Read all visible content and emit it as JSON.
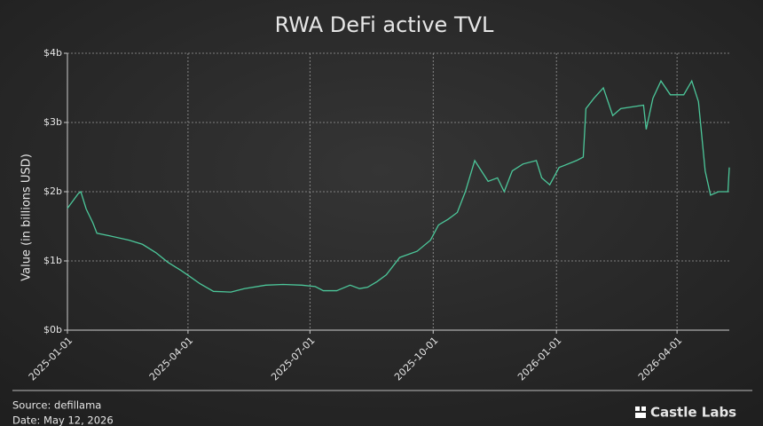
{
  "chart_data": {
    "type": "line",
    "title": "RWA DeFi active TVL",
    "y_label": "Value (in billions USD)",
    "source": "Source: defillama",
    "date_note": "Date: May 12, 2026",
    "brand": "Castle Labs",
    "grid": true,
    "xlim": [
      "2025-01-01",
      "2026-05-10"
    ],
    "xticks": [
      "2025-01-01",
      "2025-04-01",
      "2025-07-01",
      "2025-10-01",
      "2026-01-01",
      "2026-04-01"
    ],
    "ylim": [
      0,
      4
    ],
    "yticks": [
      {
        "value": 0,
        "label": "$0b"
      },
      {
        "value": 1,
        "label": "$1b"
      },
      {
        "value": 2,
        "label": "$2b"
      },
      {
        "value": 3,
        "label": "$3b"
      },
      {
        "value": 4,
        "label": "$4b"
      }
    ],
    "x": [
      "2025-01-01",
      "2025-01-09",
      "2025-01-11",
      "2025-01-15",
      "2025-01-20",
      "2025-01-23",
      "2025-02-02",
      "2025-02-16",
      "2025-02-26",
      "2025-03-08",
      "2025-03-17",
      "2025-03-27",
      "2025-04-02",
      "2025-04-10",
      "2025-04-20",
      "2025-05-03",
      "2025-05-13",
      "2025-05-29",
      "2025-06-11",
      "2025-06-25",
      "2025-07-05",
      "2025-07-11",
      "2025-07-21",
      "2025-07-31",
      "2025-08-07",
      "2025-08-13",
      "2025-08-20",
      "2025-08-27",
      "2025-09-06",
      "2025-09-19",
      "2025-09-29",
      "2025-10-05",
      "2025-10-12",
      "2025-10-19",
      "2025-10-25",
      "2025-11-01",
      "2025-11-06",
      "2025-11-11",
      "2025-11-18",
      "2025-11-23",
      "2025-11-29",
      "2025-12-07",
      "2025-12-17",
      "2025-12-21",
      "2025-12-27",
      "2026-01-03",
      "2026-01-16",
      "2026-01-21",
      "2026-01-23",
      "2026-01-29",
      "2026-02-05",
      "2026-02-12",
      "2026-02-18",
      "2026-03-07",
      "2026-03-09",
      "2026-03-14",
      "2026-03-20",
      "2026-03-27",
      "2026-04-06",
      "2026-04-12",
      "2026-04-17",
      "2026-04-22",
      "2026-04-26",
      "2026-05-02",
      "2026-05-09",
      "2026-05-10"
    ],
    "series": [
      {
        "name": "RWA DeFi active TVL",
        "color": "#4cc79a",
        "values": [
          1.76,
          1.97,
          2.0,
          1.75,
          1.55,
          1.4,
          1.36,
          1.3,
          1.24,
          1.12,
          0.98,
          0.86,
          0.78,
          0.67,
          0.56,
          0.55,
          0.6,
          0.65,
          0.66,
          0.65,
          0.63,
          0.57,
          0.57,
          0.65,
          0.6,
          0.62,
          0.7,
          0.8,
          1.05,
          1.14,
          1.3,
          1.52,
          1.6,
          1.7,
          2.0,
          2.45,
          2.3,
          2.15,
          2.2,
          2.0,
          2.3,
          2.4,
          2.45,
          2.2,
          2.1,
          2.35,
          2.45,
          2.5,
          3.2,
          3.35,
          3.5,
          3.1,
          3.2,
          3.25,
          2.9,
          3.35,
          3.6,
          3.4,
          3.4,
          3.6,
          3.3,
          2.3,
          1.95,
          2.0,
          2.0,
          2.35
        ]
      }
    ]
  }
}
